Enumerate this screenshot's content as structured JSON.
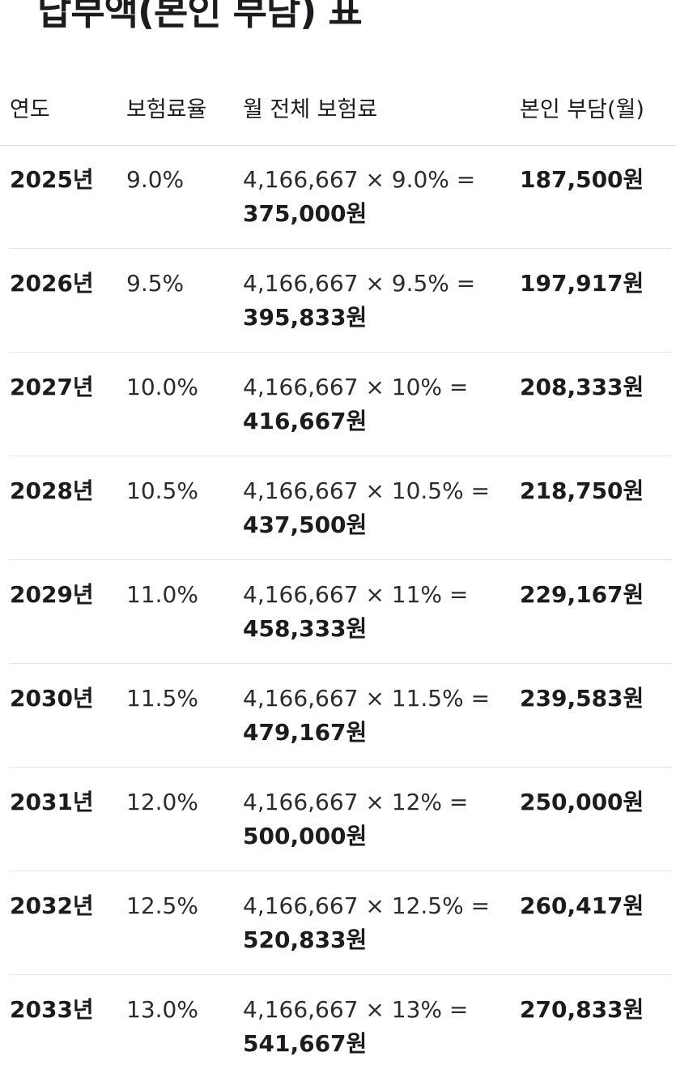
{
  "title": "납부액(본인 부담) 표",
  "headers": {
    "year": "연도",
    "rate": "보험료율",
    "monthly_total": "월 전체 보험료",
    "self_burden": "본인 부담(월)"
  },
  "rows": [
    {
      "year": "2025년",
      "rate": "9.0%",
      "expr": "4,166,667 × 9.0% =",
      "result": "375,000원",
      "self": "187,500원"
    },
    {
      "year": "2026년",
      "rate": "9.5%",
      "expr": "4,166,667 × 9.5% =",
      "result": "395,833원",
      "self": "197,917원"
    },
    {
      "year": "2027년",
      "rate": "10.0%",
      "expr": "4,166,667 × 10% =",
      "result": "416,667원",
      "self": "208,333원"
    },
    {
      "year": "2028년",
      "rate": "10.5%",
      "expr": "4,166,667 × 10.5% =",
      "result": "437,500원",
      "self": "218,750원"
    },
    {
      "year": "2029년",
      "rate": "11.0%",
      "expr": "4,166,667 × 11% =",
      "result": "458,333원",
      "self": "229,167원"
    },
    {
      "year": "2030년",
      "rate": "11.5%",
      "expr": "4,166,667 × 11.5% =",
      "result": "479,167원",
      "self": "239,583원"
    },
    {
      "year": "2031년",
      "rate": "12.0%",
      "expr": "4,166,667 × 12% =",
      "result": "500,000원",
      "self": "250,000원"
    },
    {
      "year": "2032년",
      "rate": "12.5%",
      "expr": "4,166,667 × 12.5% =",
      "result": "520,833원",
      "self": "260,417원"
    },
    {
      "year": "2033년",
      "rate": "13.0%",
      "expr": "4,166,667 × 13% =",
      "result": "541,667원",
      "self": "270,833원"
    }
  ]
}
